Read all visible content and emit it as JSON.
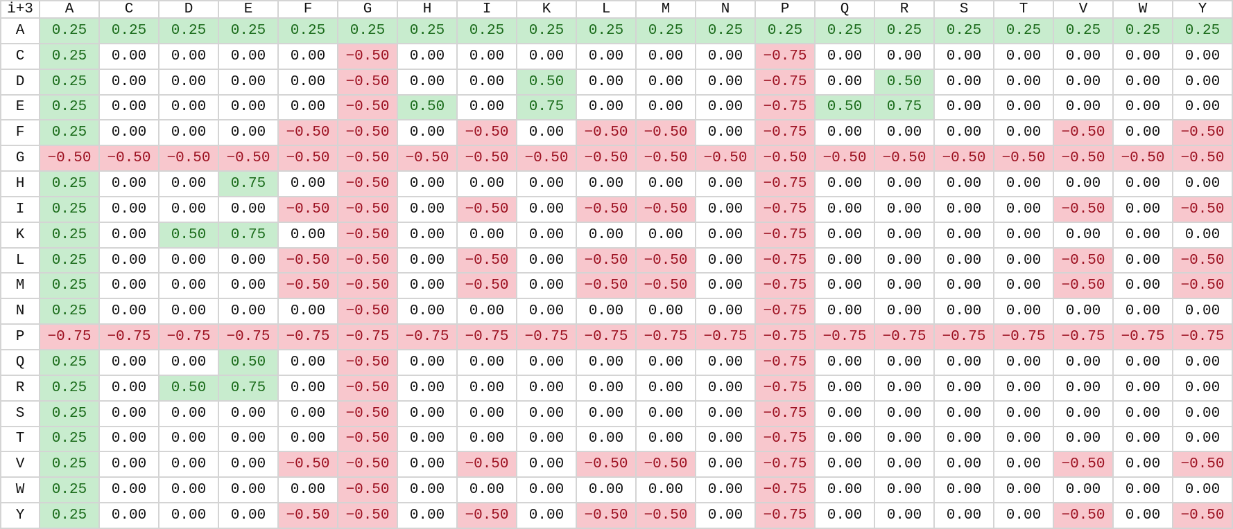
{
  "chart_data": {
    "type": "heatmap",
    "corner_label": "i+3",
    "columns": [
      "A",
      "C",
      "D",
      "E",
      "F",
      "G",
      "H",
      "I",
      "K",
      "L",
      "M",
      "N",
      "P",
      "Q",
      "R",
      "S",
      "T",
      "V",
      "W",
      "Y"
    ],
    "rows": [
      "A",
      "C",
      "D",
      "E",
      "F",
      "G",
      "H",
      "I",
      "K",
      "L",
      "M",
      "N",
      "P",
      "Q",
      "R",
      "S",
      "T",
      "V",
      "W",
      "Y"
    ],
    "values": [
      [
        0.25,
        0.25,
        0.25,
        0.25,
        0.25,
        0.25,
        0.25,
        0.25,
        0.25,
        0.25,
        0.25,
        0.25,
        0.25,
        0.25,
        0.25,
        0.25,
        0.25,
        0.25,
        0.25,
        0.25
      ],
      [
        0.25,
        0.0,
        0.0,
        0.0,
        0.0,
        -0.5,
        0.0,
        0.0,
        0.0,
        0.0,
        0.0,
        0.0,
        -0.75,
        0.0,
        0.0,
        0.0,
        0.0,
        0.0,
        0.0,
        0.0
      ],
      [
        0.25,
        0.0,
        0.0,
        0.0,
        0.0,
        -0.5,
        0.0,
        0.0,
        0.5,
        0.0,
        0.0,
        0.0,
        -0.75,
        0.0,
        0.5,
        0.0,
        0.0,
        0.0,
        0.0,
        0.0
      ],
      [
        0.25,
        0.0,
        0.0,
        0.0,
        0.0,
        -0.5,
        0.5,
        0.0,
        0.75,
        0.0,
        0.0,
        0.0,
        -0.75,
        0.5,
        0.75,
        0.0,
        0.0,
        0.0,
        0.0,
        0.0
      ],
      [
        0.25,
        0.0,
        0.0,
        0.0,
        -0.5,
        -0.5,
        0.0,
        -0.5,
        0.0,
        -0.5,
        -0.5,
        0.0,
        -0.75,
        0.0,
        0.0,
        0.0,
        0.0,
        -0.5,
        0.0,
        -0.5
      ],
      [
        -0.5,
        -0.5,
        -0.5,
        -0.5,
        -0.5,
        -0.5,
        -0.5,
        -0.5,
        -0.5,
        -0.5,
        -0.5,
        -0.5,
        -0.5,
        -0.5,
        -0.5,
        -0.5,
        -0.5,
        -0.5,
        -0.5,
        -0.5
      ],
      [
        0.25,
        0.0,
        0.0,
        0.75,
        0.0,
        -0.5,
        0.0,
        0.0,
        0.0,
        0.0,
        0.0,
        0.0,
        -0.75,
        0.0,
        0.0,
        0.0,
        0.0,
        0.0,
        0.0,
        0.0
      ],
      [
        0.25,
        0.0,
        0.0,
        0.0,
        -0.5,
        -0.5,
        0.0,
        -0.5,
        0.0,
        -0.5,
        -0.5,
        0.0,
        -0.75,
        0.0,
        0.0,
        0.0,
        0.0,
        -0.5,
        0.0,
        -0.5
      ],
      [
        0.25,
        0.0,
        0.5,
        0.75,
        0.0,
        -0.5,
        0.0,
        0.0,
        0.0,
        0.0,
        0.0,
        0.0,
        -0.75,
        0.0,
        0.0,
        0.0,
        0.0,
        0.0,
        0.0,
        0.0
      ],
      [
        0.25,
        0.0,
        0.0,
        0.0,
        -0.5,
        -0.5,
        0.0,
        -0.5,
        0.0,
        -0.5,
        -0.5,
        0.0,
        -0.75,
        0.0,
        0.0,
        0.0,
        0.0,
        -0.5,
        0.0,
        -0.5
      ],
      [
        0.25,
        0.0,
        0.0,
        0.0,
        -0.5,
        -0.5,
        0.0,
        -0.5,
        0.0,
        -0.5,
        -0.5,
        0.0,
        -0.75,
        0.0,
        0.0,
        0.0,
        0.0,
        -0.5,
        0.0,
        -0.5
      ],
      [
        0.25,
        0.0,
        0.0,
        0.0,
        0.0,
        -0.5,
        0.0,
        0.0,
        0.0,
        0.0,
        0.0,
        0.0,
        -0.75,
        0.0,
        0.0,
        0.0,
        0.0,
        0.0,
        0.0,
        0.0
      ],
      [
        -0.75,
        -0.75,
        -0.75,
        -0.75,
        -0.75,
        -0.75,
        -0.75,
        -0.75,
        -0.75,
        -0.75,
        -0.75,
        -0.75,
        -0.75,
        -0.75,
        -0.75,
        -0.75,
        -0.75,
        -0.75,
        -0.75,
        -0.75
      ],
      [
        0.25,
        0.0,
        0.0,
        0.5,
        0.0,
        -0.5,
        0.0,
        0.0,
        0.0,
        0.0,
        0.0,
        0.0,
        -0.75,
        0.0,
        0.0,
        0.0,
        0.0,
        0.0,
        0.0,
        0.0
      ],
      [
        0.25,
        0.0,
        0.5,
        0.75,
        0.0,
        -0.5,
        0.0,
        0.0,
        0.0,
        0.0,
        0.0,
        0.0,
        -0.75,
        0.0,
        0.0,
        0.0,
        0.0,
        0.0,
        0.0,
        0.0
      ],
      [
        0.25,
        0.0,
        0.0,
        0.0,
        0.0,
        -0.5,
        0.0,
        0.0,
        0.0,
        0.0,
        0.0,
        0.0,
        -0.75,
        0.0,
        0.0,
        0.0,
        0.0,
        0.0,
        0.0,
        0.0
      ],
      [
        0.25,
        0.0,
        0.0,
        0.0,
        0.0,
        -0.5,
        0.0,
        0.0,
        0.0,
        0.0,
        0.0,
        0.0,
        -0.75,
        0.0,
        0.0,
        0.0,
        0.0,
        0.0,
        0.0,
        0.0
      ],
      [
        0.25,
        0.0,
        0.0,
        0.0,
        -0.5,
        -0.5,
        0.0,
        -0.5,
        0.0,
        -0.5,
        -0.5,
        0.0,
        -0.75,
        0.0,
        0.0,
        0.0,
        0.0,
        -0.5,
        0.0,
        -0.5
      ],
      [
        0.25,
        0.0,
        0.0,
        0.0,
        0.0,
        -0.5,
        0.0,
        0.0,
        0.0,
        0.0,
        0.0,
        0.0,
        -0.75,
        0.0,
        0.0,
        0.0,
        0.0,
        0.0,
        0.0,
        0.0
      ],
      [
        0.25,
        0.0,
        0.0,
        0.0,
        -0.5,
        -0.5,
        0.0,
        -0.5,
        0.0,
        -0.5,
        -0.5,
        0.0,
        -0.75,
        0.0,
        0.0,
        0.0,
        0.0,
        -0.5,
        0.0,
        -0.5
      ]
    ],
    "colors": {
      "positive_bg": "#c8ecce",
      "positive_text": "#1a6b1a",
      "negative_bg": "#f8c7cd",
      "negative_text": "#9c1020",
      "zero_bg": "#ffffff",
      "zero_text": "#111111",
      "grid": "#d4d4d4"
    }
  }
}
